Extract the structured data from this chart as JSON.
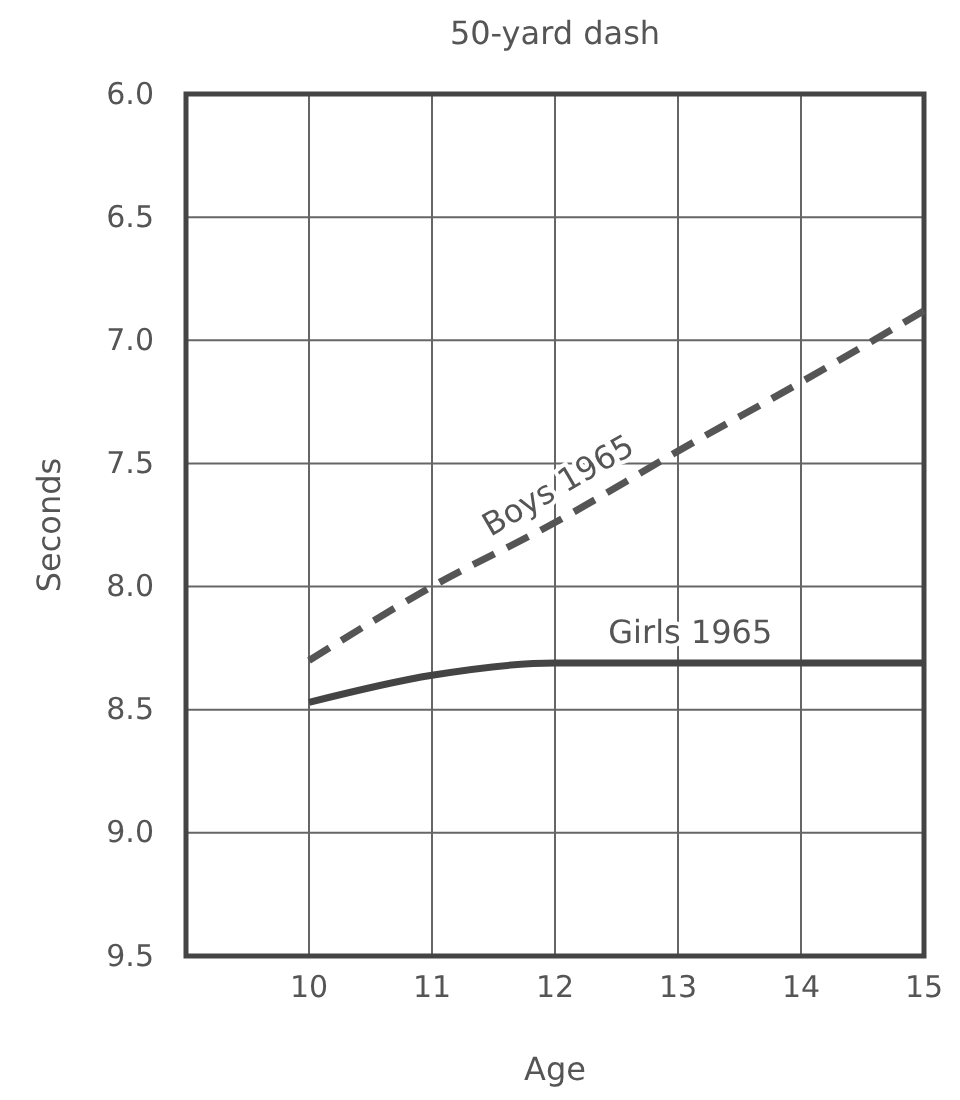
{
  "chart_data": {
    "type": "line",
    "title": "50-yard dash",
    "xlabel": "Age",
    "ylabel": "Seconds",
    "x": [
      10,
      11,
      12,
      13,
      14,
      15
    ],
    "series": [
      {
        "name": "Boys 1965",
        "color": "#555555",
        "line_style": "dashed",
        "values": [
          8.3,
          8.0,
          7.74,
          7.45,
          7.17,
          6.88
        ]
      },
      {
        "name": "Girls 1965",
        "color": "#444444",
        "line_style": "solid",
        "values": [
          8.47,
          8.36,
          8.31,
          8.31,
          8.31,
          8.31
        ]
      }
    ],
    "xlim": [
      9,
      15
    ],
    "xticks": [
      10,
      11,
      12,
      13,
      14,
      15
    ],
    "ylim": [
      9.5,
      6.0
    ],
    "yticks": [
      {
        "value": 6.0,
        "label": "6.0"
      },
      {
        "value": 6.5,
        "label": "6.5"
      },
      {
        "value": 7.0,
        "label": "7.0"
      },
      {
        "value": 7.5,
        "label": "7.5"
      },
      {
        "value": 8.0,
        "label": "8.0"
      },
      {
        "value": 8.5,
        "label": "8.5"
      },
      {
        "value": 9.0,
        "label": "9.0"
      },
      {
        "value": 9.5,
        "label": "9.5"
      }
    ],
    "grid": true,
    "marker": "none"
  }
}
